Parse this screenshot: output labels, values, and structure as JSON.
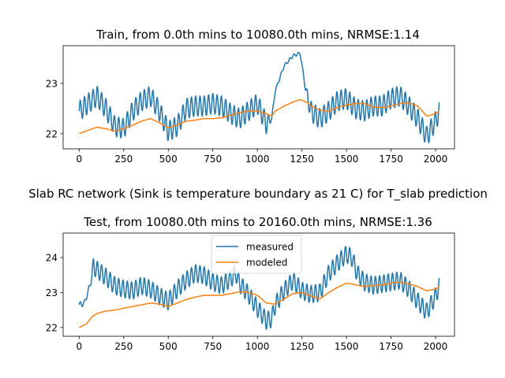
{
  "suptitle": "Slab RC network (Sink is temperature boundary as 21 C) for T_slab prediction",
  "chart_data": [
    {
      "type": "line",
      "title": "Train, from 0.0th mins to 10080.0th mins, NRMSE:1.14",
      "xlabel": "",
      "ylabel": "",
      "xlim": [
        -90,
        2106
      ],
      "ylim": [
        21.7,
        23.75
      ],
      "xticks": [
        0,
        250,
        500,
        750,
        1000,
        1250,
        1500,
        1750,
        2000
      ],
      "yticks": [
        22,
        23
      ],
      "grid": false,
      "legend": null,
      "colors": {
        "measured": "#1f77b4",
        "modeled": "#ff7f0e"
      },
      "series": [
        {
          "key": "measured",
          "points": [
            [
              0,
              22.45
            ],
            [
              50,
              22.6
            ],
            [
              100,
              22.75
            ],
            [
              150,
              22.5
            ],
            [
              200,
              22.15
            ],
            [
              250,
              22.1
            ],
            [
              300,
              22.45
            ],
            [
              350,
              22.65
            ],
            [
              400,
              22.75
            ],
            [
              450,
              22.45
            ],
            [
              500,
              22.05
            ],
            [
              550,
              22.15
            ],
            [
              600,
              22.5
            ],
            [
              650,
              22.55
            ],
            [
              700,
              22.55
            ],
            [
              750,
              22.6
            ],
            [
              800,
              22.55
            ],
            [
              850,
              22.4
            ],
            [
              900,
              22.3
            ],
            [
              950,
              22.45
            ],
            [
              1000,
              22.6
            ],
            [
              1050,
              22.2
            ],
            [
              1080,
              22.3
            ],
            [
              1100,
              22.85
            ],
            [
              1150,
              23.35
            ],
            [
              1200,
              23.55
            ],
            [
              1240,
              23.6
            ],
            [
              1270,
              22.9
            ],
            [
              1300,
              22.45
            ],
            [
              1350,
              22.3
            ],
            [
              1400,
              22.45
            ],
            [
              1450,
              22.65
            ],
            [
              1500,
              22.7
            ],
            [
              1550,
              22.5
            ],
            [
              1600,
              22.45
            ],
            [
              1650,
              22.55
            ],
            [
              1700,
              22.55
            ],
            [
              1750,
              22.7
            ],
            [
              1800,
              22.75
            ],
            [
              1850,
              22.55
            ],
            [
              1900,
              22.3
            ],
            [
              1950,
              21.95
            ],
            [
              2000,
              22.25
            ],
            [
              2020,
              22.45
            ]
          ],
          "osc_amp": [
            [
              0,
              0.2
            ],
            [
              1050,
              0.2
            ],
            [
              1080,
              0.03
            ],
            [
              1260,
              0.03
            ],
            [
              1300,
              0.2
            ],
            [
              2020,
              0.2
            ]
          ],
          "osc_period": 24
        },
        {
          "key": "modeled",
          "points": [
            [
              0,
              22.0
            ],
            [
              50,
              22.07
            ],
            [
              100,
              22.13
            ],
            [
              150,
              22.1
            ],
            [
              200,
              22.05
            ],
            [
              250,
              22.1
            ],
            [
              300,
              22.17
            ],
            [
              350,
              22.25
            ],
            [
              400,
              22.3
            ],
            [
              450,
              22.22
            ],
            [
              500,
              22.12
            ],
            [
              550,
              22.17
            ],
            [
              600,
              22.25
            ],
            [
              650,
              22.27
            ],
            [
              700,
              22.3
            ],
            [
              750,
              22.3
            ],
            [
              800,
              22.32
            ],
            [
              850,
              22.37
            ],
            [
              900,
              22.42
            ],
            [
              950,
              22.45
            ],
            [
              1000,
              22.45
            ],
            [
              1050,
              22.4
            ],
            [
              1080,
              22.35
            ],
            [
              1100,
              22.45
            ],
            [
              1150,
              22.55
            ],
            [
              1200,
              22.63
            ],
            [
              1240,
              22.68
            ],
            [
              1280,
              22.62
            ],
            [
              1300,
              22.55
            ],
            [
              1350,
              22.47
            ],
            [
              1400,
              22.45
            ],
            [
              1450,
              22.52
            ],
            [
              1500,
              22.57
            ],
            [
              1550,
              22.6
            ],
            [
              1600,
              22.6
            ],
            [
              1650,
              22.53
            ],
            [
              1700,
              22.52
            ],
            [
              1750,
              22.55
            ],
            [
              1800,
              22.6
            ],
            [
              1850,
              22.62
            ],
            [
              1900,
              22.55
            ],
            [
              1950,
              22.35
            ],
            [
              2000,
              22.4
            ],
            [
              2020,
              22.45
            ]
          ]
        }
      ]
    },
    {
      "type": "line",
      "title": "Test, from 10080.0th mins to 20160.0th mins, NRMSE:1.36",
      "xlabel": "",
      "ylabel": "",
      "xlim": [
        -90,
        2106
      ],
      "ylim": [
        21.75,
        24.7
      ],
      "xticks": [
        0,
        250,
        500,
        750,
        1000,
        1250,
        1500,
        1750,
        2000
      ],
      "yticks": [
        22,
        23,
        24
      ],
      "grid": false,
      "legend": {
        "position": "top-center",
        "entries": [
          "measured",
          "modeled"
        ]
      },
      "colors": {
        "measured": "#1f77b4",
        "modeled": "#ff7f0e"
      },
      "series": [
        {
          "key": "measured",
          "points": [
            [
              0,
              22.65
            ],
            [
              30,
              22.7
            ],
            [
              60,
              23.2
            ],
            [
              80,
              23.75
            ],
            [
              100,
              23.65
            ],
            [
              150,
              23.45
            ],
            [
              200,
              23.2
            ],
            [
              250,
              23.1
            ],
            [
              300,
              23.05
            ],
            [
              350,
              23.2
            ],
            [
              400,
              23.1
            ],
            [
              450,
              22.9
            ],
            [
              500,
              22.75
            ],
            [
              550,
              23.1
            ],
            [
              600,
              23.35
            ],
            [
              650,
              23.55
            ],
            [
              700,
              23.5
            ],
            [
              750,
              23.3
            ],
            [
              800,
              23.2
            ],
            [
              850,
              23.4
            ],
            [
              880,
              23.55
            ],
            [
              900,
              23.25
            ],
            [
              950,
              22.95
            ],
            [
              1000,
              22.55
            ],
            [
              1050,
              22.2
            ],
            [
              1080,
              22.25
            ],
            [
              1100,
              22.65
            ],
            [
              1150,
              23.05
            ],
            [
              1200,
              23.35
            ],
            [
              1250,
              23.05
            ],
            [
              1300,
              22.95
            ],
            [
              1350,
              23.0
            ],
            [
              1400,
              23.55
            ],
            [
              1450,
              23.85
            ],
            [
              1500,
              24.1
            ],
            [
              1530,
              24.0
            ],
            [
              1560,
              23.55
            ],
            [
              1600,
              23.3
            ],
            [
              1650,
              23.2
            ],
            [
              1700,
              23.25
            ],
            [
              1750,
              23.3
            ],
            [
              1800,
              23.35
            ],
            [
              1850,
              23.1
            ],
            [
              1900,
              22.75
            ],
            [
              1950,
              22.45
            ],
            [
              2000,
              22.9
            ],
            [
              2020,
              23.2
            ]
          ],
          "osc_amp": [
            [
              0,
              0.08
            ],
            [
              60,
              0.08
            ],
            [
              80,
              0.25
            ],
            [
              2020,
              0.25
            ]
          ],
          "osc_period": 24
        },
        {
          "key": "modeled",
          "points": [
            [
              0,
              22.0
            ],
            [
              40,
              22.1
            ],
            [
              70,
              22.3
            ],
            [
              100,
              22.4
            ],
            [
              150,
              22.47
            ],
            [
              200,
              22.5
            ],
            [
              250,
              22.55
            ],
            [
              300,
              22.6
            ],
            [
              350,
              22.65
            ],
            [
              400,
              22.7
            ],
            [
              450,
              22.67
            ],
            [
              500,
              22.6
            ],
            [
              550,
              22.7
            ],
            [
              600,
              22.8
            ],
            [
              650,
              22.87
            ],
            [
              700,
              22.92
            ],
            [
              750,
              22.92
            ],
            [
              800,
              22.92
            ],
            [
              850,
              22.97
            ],
            [
              900,
              23.02
            ],
            [
              950,
              23.0
            ],
            [
              1000,
              22.92
            ],
            [
              1050,
              22.7
            ],
            [
              1100,
              22.67
            ],
            [
              1150,
              22.82
            ],
            [
              1200,
              22.97
            ],
            [
              1250,
              23.0
            ],
            [
              1300,
              22.9
            ],
            [
              1350,
              22.82
            ],
            [
              1400,
              23.0
            ],
            [
              1450,
              23.15
            ],
            [
              1500,
              23.27
            ],
            [
              1550,
              23.22
            ],
            [
              1600,
              23.17
            ],
            [
              1650,
              23.2
            ],
            [
              1700,
              23.22
            ],
            [
              1750,
              23.27
            ],
            [
              1800,
              23.3
            ],
            [
              1850,
              23.25
            ],
            [
              1900,
              23.17
            ],
            [
              1950,
              23.05
            ],
            [
              2000,
              23.1
            ],
            [
              2020,
              23.15
            ]
          ]
        }
      ]
    }
  ]
}
